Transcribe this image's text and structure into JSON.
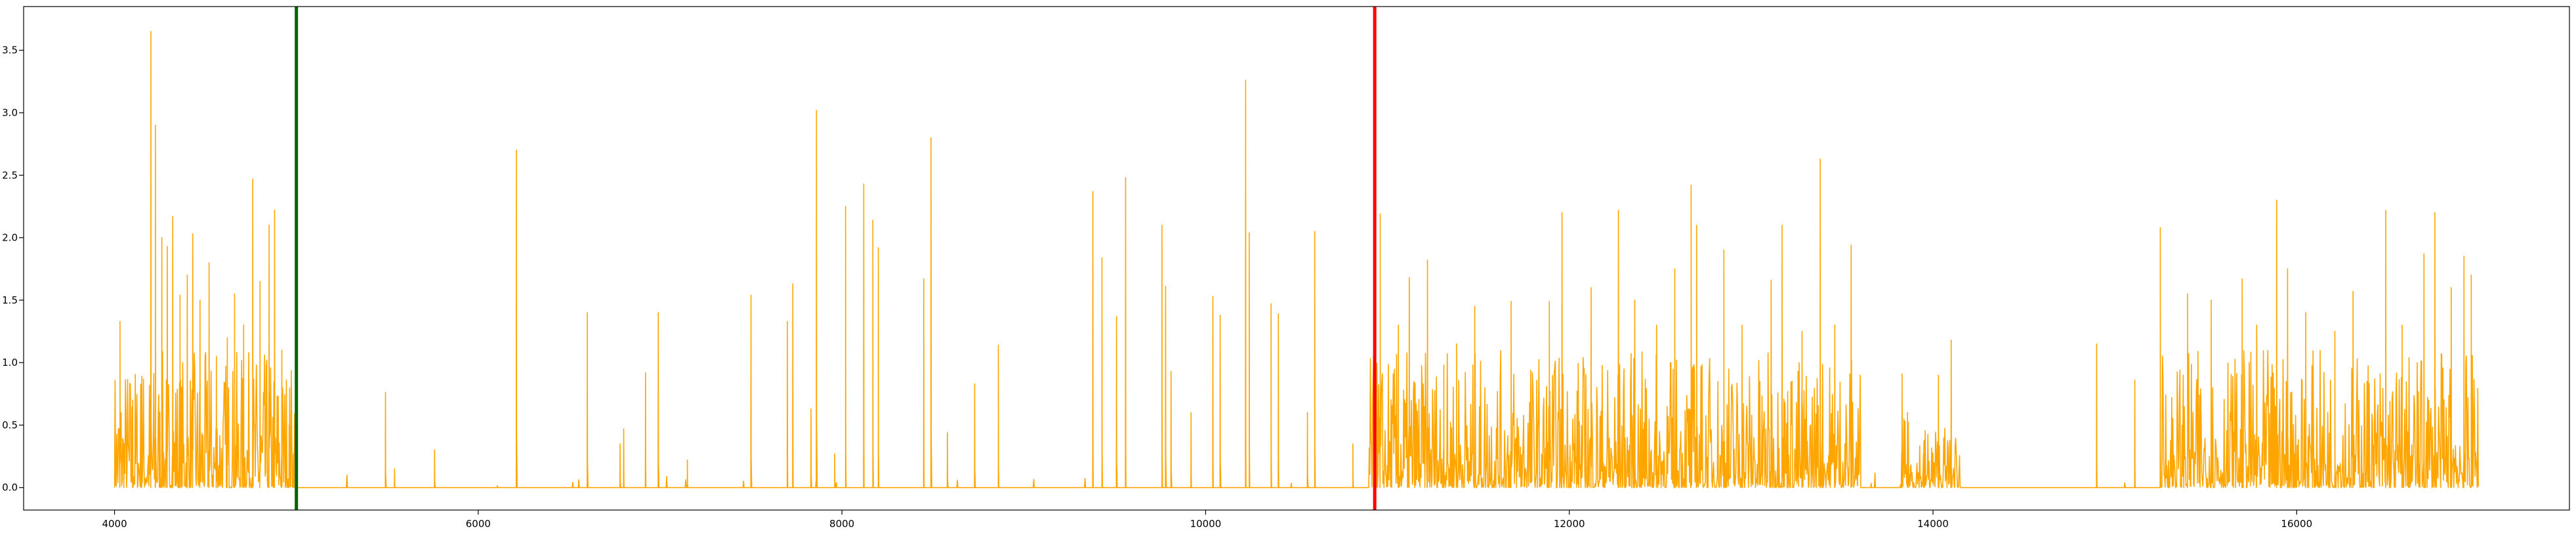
{
  "chart_data": {
    "type": "line",
    "title": "",
    "xlabel": "",
    "ylabel": "",
    "xlim": [
      3500,
      17500
    ],
    "ylim": [
      -0.18,
      3.85
    ],
    "xticks": [
      4000,
      6000,
      8000,
      10000,
      12000,
      14000,
      16000
    ],
    "xtick_labels": [
      "4000",
      "6000",
      "8000",
      "10000",
      "12000",
      "14000",
      "16000"
    ],
    "yticks": [
      0.0,
      0.5,
      1.0,
      1.5,
      2.0,
      2.5,
      3.0,
      3.5
    ],
    "ytick_labels": [
      "0.0",
      "0.5",
      "1.0",
      "1.5",
      "2.0",
      "2.5",
      "3.0",
      "3.5"
    ],
    "grid": false,
    "legend": "none",
    "series": [
      {
        "color": "#ffa500",
        "x_range": [
          4000,
          17000
        ],
        "baseline": 0.0,
        "active_segments": [
          {
            "x": [
              4000,
              5000
            ],
            "typical_max": 1.0
          },
          {
            "x": [
              10900,
              13600
            ],
            "typical_max": 1.0
          },
          {
            "x": [
              13820,
              14150
            ],
            "typical_max": 0.5
          },
          {
            "x": [
              15250,
              17000
            ],
            "typical_max": 1.0
          }
        ],
        "peaks": [
          {
            "x": 4030,
            "y": 1.33
          },
          {
            "x": 4100,
            "y": 0.7
          },
          {
            "x": 4150,
            "y": 0.89
          },
          {
            "x": 4200,
            "y": 3.65
          },
          {
            "x": 4225,
            "y": 2.9
          },
          {
            "x": 4260,
            "y": 2.0
          },
          {
            "x": 4290,
            "y": 1.93
          },
          {
            "x": 4320,
            "y": 2.17
          },
          {
            "x": 4360,
            "y": 1.54
          },
          {
            "x": 4400,
            "y": 1.7
          },
          {
            "x": 4430,
            "y": 2.03
          },
          {
            "x": 4470,
            "y": 1.5
          },
          {
            "x": 4520,
            "y": 1.8
          },
          {
            "x": 4560,
            "y": 1.05
          },
          {
            "x": 4620,
            "y": 1.2
          },
          {
            "x": 4660,
            "y": 1.55
          },
          {
            "x": 4710,
            "y": 1.3
          },
          {
            "x": 4760,
            "y": 2.47
          },
          {
            "x": 4800,
            "y": 1.65
          },
          {
            "x": 4850,
            "y": 2.1
          },
          {
            "x": 4880,
            "y": 2.22
          },
          {
            "x": 4920,
            "y": 1.1
          },
          {
            "x": 4960,
            "y": 0.5
          },
          {
            "x": 5000,
            "y": 0.95
          },
          {
            "x": 5490,
            "y": 0.76
          },
          {
            "x": 5540,
            "y": 0.15
          },
          {
            "x": 5760,
            "y": 0.3
          },
          {
            "x": 6210,
            "y": 2.7
          },
          {
            "x": 6600,
            "y": 1.4
          },
          {
            "x": 6780,
            "y": 0.35
          },
          {
            "x": 6800,
            "y": 0.47
          },
          {
            "x": 6920,
            "y": 0.92
          },
          {
            "x": 6990,
            "y": 1.4
          },
          {
            "x": 7150,
            "y": 0.22
          },
          {
            "x": 7500,
            "y": 1.54
          },
          {
            "x": 7700,
            "y": 1.33
          },
          {
            "x": 7730,
            "y": 1.63
          },
          {
            "x": 7830,
            "y": 0.63
          },
          {
            "x": 7860,
            "y": 3.02
          },
          {
            "x": 7960,
            "y": 0.27
          },
          {
            "x": 8020,
            "y": 2.25
          },
          {
            "x": 8120,
            "y": 2.43
          },
          {
            "x": 8170,
            "y": 2.14
          },
          {
            "x": 8200,
            "y": 1.92
          },
          {
            "x": 8450,
            "y": 1.67
          },
          {
            "x": 8490,
            "y": 2.8
          },
          {
            "x": 8580,
            "y": 0.44
          },
          {
            "x": 8730,
            "y": 0.83
          },
          {
            "x": 8860,
            "y": 1.14
          },
          {
            "x": 9380,
            "y": 2.37
          },
          {
            "x": 9430,
            "y": 1.84
          },
          {
            "x": 9510,
            "y": 1.37
          },
          {
            "x": 9560,
            "y": 2.48
          },
          {
            "x": 9760,
            "y": 2.1
          },
          {
            "x": 9780,
            "y": 1.61
          },
          {
            "x": 9810,
            "y": 0.93
          },
          {
            "x": 9920,
            "y": 0.6
          },
          {
            "x": 10040,
            "y": 1.53
          },
          {
            "x": 10080,
            "y": 1.38
          },
          {
            "x": 10220,
            "y": 3.26
          },
          {
            "x": 10240,
            "y": 2.04
          },
          {
            "x": 10360,
            "y": 1.47
          },
          {
            "x": 10400,
            "y": 1.39
          },
          {
            "x": 10560,
            "y": 0.6
          },
          {
            "x": 10600,
            "y": 2.05
          },
          {
            "x": 10810,
            "y": 0.35
          },
          {
            "x": 10960,
            "y": 2.19
          },
          {
            "x": 11060,
            "y": 1.3
          },
          {
            "x": 11120,
            "y": 1.68
          },
          {
            "x": 11220,
            "y": 1.82
          },
          {
            "x": 11310,
            "y": 0.98
          },
          {
            "x": 11380,
            "y": 1.15
          },
          {
            "x": 11480,
            "y": 1.45
          },
          {
            "x": 11680,
            "y": 1.49
          },
          {
            "x": 11890,
            "y": 1.49
          },
          {
            "x": 11960,
            "y": 2.2
          },
          {
            "x": 12120,
            "y": 1.6
          },
          {
            "x": 12270,
            "y": 2.22
          },
          {
            "x": 12360,
            "y": 1.5
          },
          {
            "x": 12480,
            "y": 1.3
          },
          {
            "x": 12580,
            "y": 1.75
          },
          {
            "x": 12670,
            "y": 2.42
          },
          {
            "x": 12700,
            "y": 2.1
          },
          {
            "x": 12850,
            "y": 1.9
          },
          {
            "x": 12950,
            "y": 1.3
          },
          {
            "x": 13110,
            "y": 1.66
          },
          {
            "x": 13170,
            "y": 2.1
          },
          {
            "x": 13280,
            "y": 1.25
          },
          {
            "x": 13380,
            "y": 2.63
          },
          {
            "x": 13460,
            "y": 1.3
          },
          {
            "x": 13550,
            "y": 1.94
          },
          {
            "x": 13830,
            "y": 0.91
          },
          {
            "x": 13860,
            "y": 0.6
          },
          {
            "x": 13950,
            "y": 0.35
          },
          {
            "x": 14030,
            "y": 0.9
          },
          {
            "x": 14100,
            "y": 1.18
          },
          {
            "x": 14900,
            "y": 1.15
          },
          {
            "x": 15110,
            "y": 0.86
          },
          {
            "x": 15250,
            "y": 2.08
          },
          {
            "x": 15400,
            "y": 1.55
          },
          {
            "x": 15530,
            "y": 1.5
          },
          {
            "x": 15700,
            "y": 1.67
          },
          {
            "x": 15780,
            "y": 1.3
          },
          {
            "x": 15890,
            "y": 2.3
          },
          {
            "x": 15950,
            "y": 1.75
          },
          {
            "x": 16050,
            "y": 1.4
          },
          {
            "x": 16210,
            "y": 1.25
          },
          {
            "x": 16310,
            "y": 1.57
          },
          {
            "x": 16490,
            "y": 2.22
          },
          {
            "x": 16580,
            "y": 1.3
          },
          {
            "x": 16700,
            "y": 1.87
          },
          {
            "x": 16760,
            "y": 2.2
          },
          {
            "x": 16850,
            "y": 1.6
          },
          {
            "x": 16920,
            "y": 1.85
          },
          {
            "x": 16960,
            "y": 1.7
          }
        ]
      }
    ],
    "vlines": [
      {
        "x": 5000,
        "color": "#006400"
      },
      {
        "x": 10930,
        "color": "#ff0000"
      }
    ]
  }
}
